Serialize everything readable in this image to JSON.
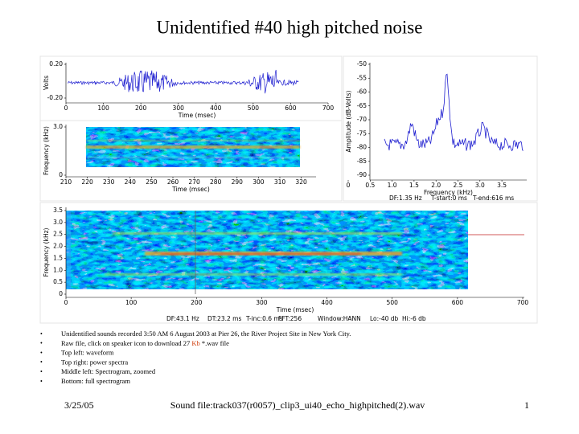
{
  "title": "Unidentified #40 high pitched noise",
  "waveform": {
    "y_label": "Volts",
    "yticks": [
      "0.20",
      "-0.20"
    ],
    "xticks": [
      "0",
      "100",
      "200",
      "300",
      "400",
      "500",
      "600",
      "700"
    ],
    "x_label": "Time (msec)"
  },
  "zoomed_spectrogram": {
    "y_label": "Frequency (kHz)",
    "yticks": [
      "3.0",
      "0"
    ],
    "xticks": [
      "210",
      "220",
      "230",
      "240",
      "250",
      "260",
      "270",
      "280",
      "290",
      "300",
      "310",
      "320"
    ],
    "x_label": "Time (msec)"
  },
  "power_spectrum": {
    "y_label": "Amplitude (dB-Volts)",
    "yticks": [
      "-50",
      "-55",
      "-60",
      "-65",
      "-70",
      "-75",
      "-80",
      "-85",
      "-90"
    ],
    "xticks": [
      "0",
      "0.5",
      "1.0",
      "1.5",
      "2.0",
      "2.5",
      "3.0",
      "3.5"
    ],
    "x_label": "Frequency (kHz)",
    "info": [
      "DF:1.35 Hz",
      "T-start:0 ms",
      "T-end:616 ms"
    ]
  },
  "full_spectrogram": {
    "y_label": "Frequency (kHz)",
    "yticks": [
      "3.5",
      "3.0",
      "2.5",
      "2.0",
      "1.5",
      "1.0",
      "0.5",
      "0"
    ],
    "xticks": [
      "0",
      "100",
      "200",
      "300",
      "400",
      "500",
      "600",
      "700"
    ],
    "x_label": "Time (msec)",
    "info": [
      "DF:43.1 Hz",
      "DT:23.2 ms",
      "T-inc:0.6 ms",
      "FFT:256",
      "Window:HANN",
      "Lo:-40 db",
      "Hi:-6 db"
    ]
  },
  "bullets": [
    "Unidentified sounds recorded 3:50 AM 6 August 2003 at Pier 26, the River Project Site in New York City.",
    [
      "Raw file, click on speaker icon to download 27 ",
      "Kb",
      " *.wav file"
    ],
    "Top left: waveform",
    "Top right: power spectra",
    "Middle left: Spectrogram, zoomed",
    "Bottom: full spectrogram"
  ],
  "footer": {
    "date": "3/25/05",
    "file": "Sound file:track037(r0057)_clip3_ui40_echo_highpitched(2).wav",
    "page": "1"
  }
}
